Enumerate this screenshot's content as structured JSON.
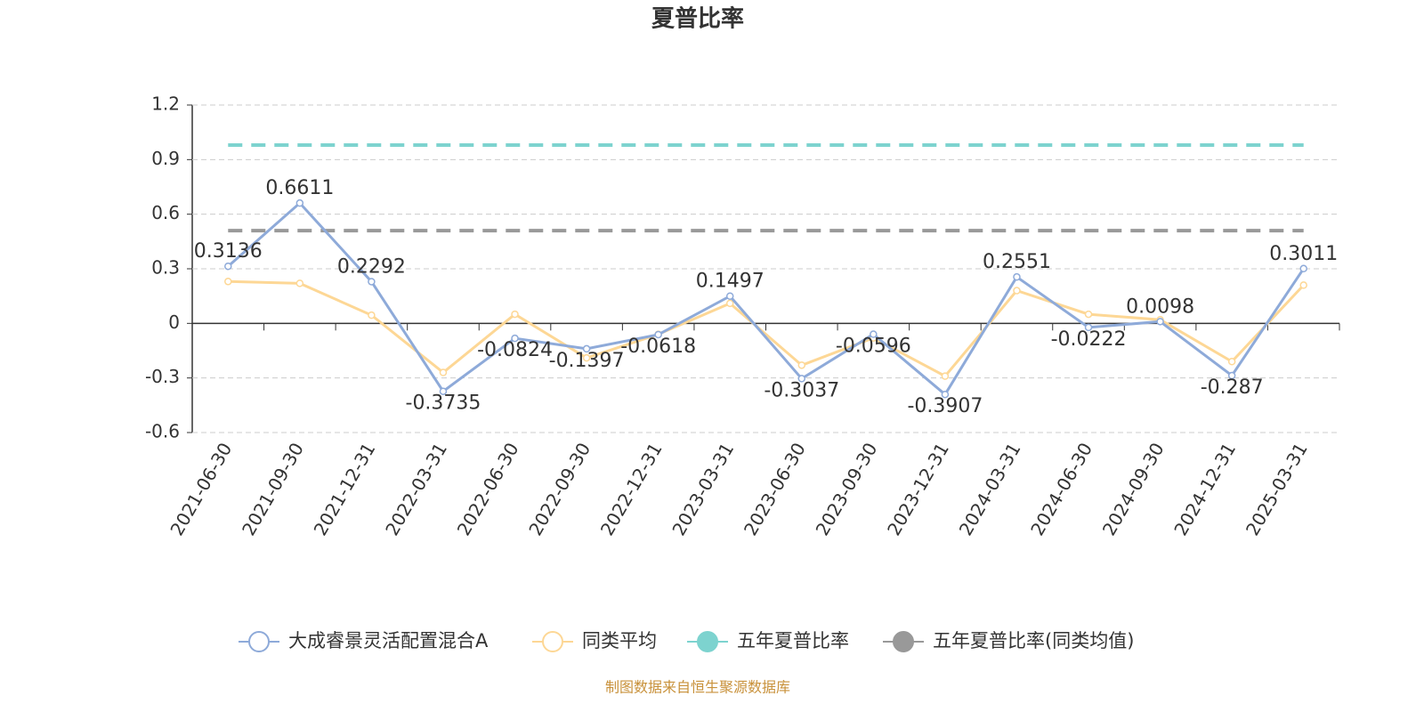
{
  "chart_data": {
    "type": "line",
    "title": "夏普比率",
    "categories": [
      "2021-06-30",
      "2021-09-30",
      "2021-12-31",
      "2022-03-31",
      "2022-06-30",
      "2022-09-30",
      "2022-12-31",
      "2023-03-31",
      "2023-06-30",
      "2023-09-30",
      "2023-12-31",
      "2024-03-31",
      "2024-06-30",
      "2024-09-30",
      "2024-12-31",
      "2025-03-31"
    ],
    "series": [
      {
        "name": "大成睿景灵活配置混合A",
        "color": "#8eaad9",
        "labels": true,
        "values": [
          0.3136,
          0.6611,
          0.2292,
          -0.3735,
          -0.0824,
          -0.1397,
          -0.0618,
          0.1497,
          -0.3037,
          -0.0596,
          -0.3907,
          0.2551,
          -0.0222,
          0.0098,
          -0.287,
          0.3011
        ]
      },
      {
        "name": "同类平均",
        "color": "#fdd795",
        "labels": false,
        "values": [
          0.23,
          0.22,
          0.045,
          -0.27,
          0.05,
          -0.19,
          -0.06,
          0.11,
          -0.23,
          -0.08,
          -0.29,
          0.18,
          0.05,
          0.02,
          -0.21,
          0.21
        ]
      }
    ],
    "reference_lines": [
      {
        "name": "五年夏普比率",
        "color": "#7dd3cf",
        "value": 0.98
      },
      {
        "name": "五年夏普比率(同类均值)",
        "color": "#999999",
        "value": 0.51
      }
    ],
    "ylim": [
      -0.6,
      1.2
    ],
    "yticks": [
      -0.6,
      -0.3,
      0,
      0.3,
      0.6,
      0.9,
      1.2
    ],
    "grid": true,
    "source": "制图数据来自恒生聚源数据库"
  }
}
